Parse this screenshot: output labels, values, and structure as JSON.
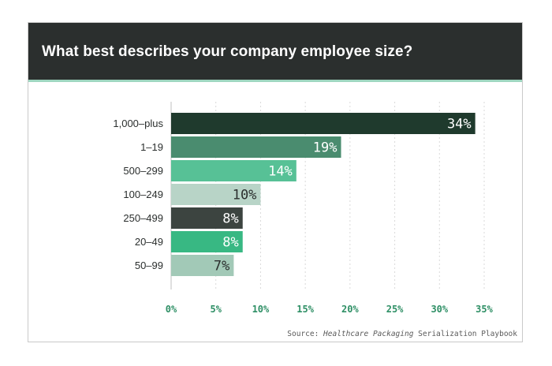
{
  "chart_data": {
    "type": "bar",
    "orientation": "horizontal",
    "title": "What best describes your company employee size?",
    "categories": [
      "1,000–plus",
      "1–19",
      "500–299",
      "100–249",
      "250–499",
      "20–49",
      "50–99"
    ],
    "values": [
      34,
      19,
      14,
      10,
      8,
      8,
      7
    ],
    "data_labels": [
      "34%",
      "19%",
      "14%",
      "10%",
      "8%",
      "8%",
      "7%"
    ],
    "bar_colors": [
      "#1f3a2d",
      "#4a8c6f",
      "#57c196",
      "#b8d4c7",
      "#3c4440",
      "#38b883",
      "#a2c9b7"
    ],
    "label_colors": [
      "#ffffff",
      "#ffffff",
      "#ffffff",
      "#2b2f2e",
      "#ffffff",
      "#ffffff",
      "#2b2f2e"
    ],
    "xlim": [
      0,
      35
    ],
    "x_ticks": [
      0,
      5,
      10,
      15,
      20,
      25,
      30,
      35
    ],
    "x_tick_labels": [
      "0%",
      "5%",
      "10%",
      "15%",
      "20%",
      "25%",
      "30%",
      "35%"
    ],
    "tick_color": "#2e8f65",
    "grid": "vertical-dashed"
  },
  "source": {
    "prefix": "Source: ",
    "publication": "Healthcare Packaging",
    "suffix": " Serialization Playbook"
  }
}
